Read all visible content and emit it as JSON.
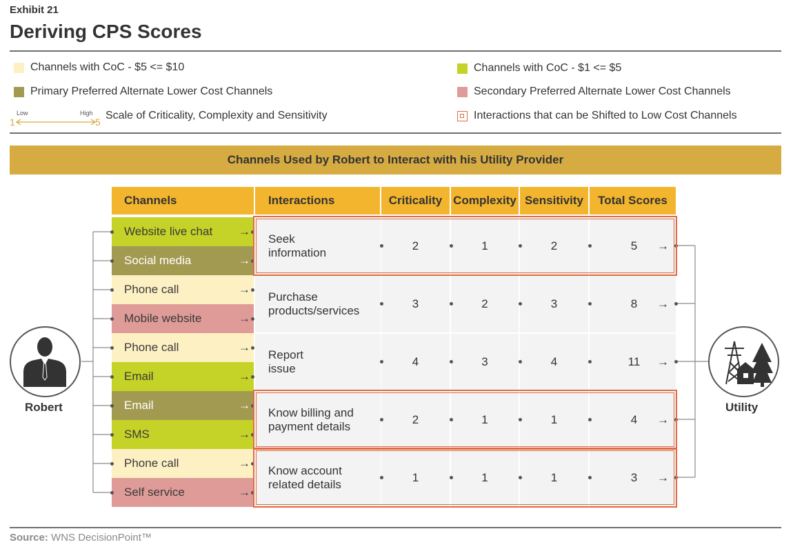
{
  "header": {
    "exhibit": "Exhibit 21",
    "title": "Deriving CPS Scores"
  },
  "legend": {
    "items": [
      {
        "label": "Channels with CoC - $5 <= $10",
        "color": "#fdf1c4"
      },
      {
        "label": "Channels with CoC - $1 <= $5",
        "color": "#c5d227"
      },
      {
        "label": "Primary Preferred Alternate Lower Cost Channels",
        "color": "#a39a52"
      },
      {
        "label": "Secondary Preferred Alternate Lower Cost Channels",
        "color": "#df9b97"
      },
      {
        "label": "Interactions that can be Shifted to Low Cost Channels",
        "color": "#e06b43"
      }
    ],
    "scale": {
      "label": "Scale of Criticality, Complexity and Sensitivity",
      "low": "Low",
      "high": "High",
      "min": "1",
      "max": "5"
    }
  },
  "banner": "Channels Used by Robert to Interact with his Utility Provider",
  "table": {
    "headers": {
      "channels": "Channels",
      "interactions": "Interactions",
      "criticality": "Criticality",
      "complexity": "Complexity",
      "sensitivity": "Sensitivity",
      "total": "Total Scores"
    },
    "channels": [
      {
        "label": "Website live chat",
        "type": "low_cost"
      },
      {
        "label": "Social media",
        "type": "primary"
      },
      {
        "label": "Phone call",
        "type": "mid_cost"
      },
      {
        "label": "Mobile website",
        "type": "secondary"
      },
      {
        "label": "Phone call",
        "type": "mid_cost"
      },
      {
        "label": "Email",
        "type": "low_cost"
      },
      {
        "label": "Email",
        "type": "primary"
      },
      {
        "label": "SMS",
        "type": "low_cost"
      },
      {
        "label": "Phone call",
        "type": "mid_cost"
      },
      {
        "label": "Self service",
        "type": "secondary"
      }
    ],
    "interactions": [
      {
        "label": "Seek information",
        "line1": "Seek",
        "line2": "information",
        "criticality": "2",
        "complexity": "1",
        "sensitivity": "2",
        "total": "5",
        "shiftable": true
      },
      {
        "label": "Purchase products/services",
        "line1": "Purchase",
        "line2": "products/services",
        "criticality": "3",
        "complexity": "2",
        "sensitivity": "3",
        "total": "8",
        "shiftable": false
      },
      {
        "label": "Report issue",
        "line1": "Report",
        "line2": "issue",
        "criticality": "4",
        "complexity": "3",
        "sensitivity": "4",
        "total": "11",
        "shiftable": false
      },
      {
        "label": "Know billing and payment details",
        "line1": "Know billing and",
        "line2": "payment details",
        "criticality": "2",
        "complexity": "1",
        "sensitivity": "1",
        "total": "4",
        "shiftable": true
      },
      {
        "label": "Know account related details",
        "line1": "Know account",
        "line2": "related details",
        "criticality": "1",
        "complexity": "1",
        "sensitivity": "1",
        "total": "3",
        "shiftable": true
      }
    ]
  },
  "actors": {
    "customer": "Robert",
    "provider": "Utility"
  },
  "colors": {
    "low_cost": "#c5d227",
    "primary": "#a39a52",
    "mid_cost": "#fdf1c4",
    "secondary": "#df9b97",
    "banner": "#d6ab41",
    "header": "#f3b52d",
    "highlight": "#e06b43"
  },
  "source": {
    "label": "Source:",
    "text": "WNS DecisionPoint™"
  }
}
